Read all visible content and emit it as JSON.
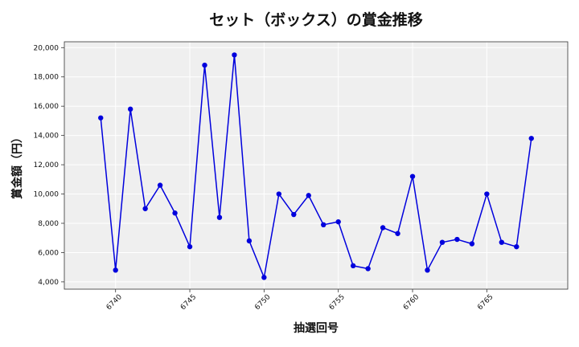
{
  "chart_data": {
    "type": "line",
    "title": "セット（ボックス）の賞金推移",
    "xlabel": "抽選回号",
    "ylabel": "賞金額（円）",
    "x": [
      6739,
      6740,
      6741,
      6742,
      6743,
      6744,
      6745,
      6746,
      6747,
      6748,
      6749,
      6750,
      6751,
      6752,
      6753,
      6754,
      6755,
      6756,
      6757,
      6758,
      6759,
      6760,
      6761,
      6762,
      6763,
      6764,
      6765,
      6766,
      6767,
      6768
    ],
    "series": [
      {
        "values": [
          15200,
          4800,
          15800,
          9000,
          10600,
          8700,
          6400,
          18800,
          8400,
          19500,
          6800,
          4300,
          10000,
          8600,
          9900,
          7900,
          8100,
          5100,
          4900,
          7700,
          7300,
          11200,
          4800,
          6700,
          6900,
          6600,
          10000,
          6700,
          6400,
          13800
        ],
        "color": "#0000dd"
      }
    ],
    "xlim": [
      6736.55,
      6770.45
    ],
    "ylim": [
      3500,
      20400
    ],
    "xticks": [
      6740,
      6745,
      6750,
      6755,
      6760,
      6765
    ],
    "xtick_labels": [
      "6740",
      "6745",
      "6750",
      "6755",
      "6760",
      "6765"
    ],
    "yticks": [
      4000,
      6000,
      8000,
      10000,
      12000,
      14000,
      16000,
      18000,
      20000
    ],
    "ytick_labels": [
      "4,000",
      "6,000",
      "8,000",
      "10,000",
      "12,000",
      "14,000",
      "16,000",
      "18,000",
      "20,000"
    ],
    "grid": true,
    "plot_background": "#efefef",
    "grid_color": "#ffffff"
  }
}
